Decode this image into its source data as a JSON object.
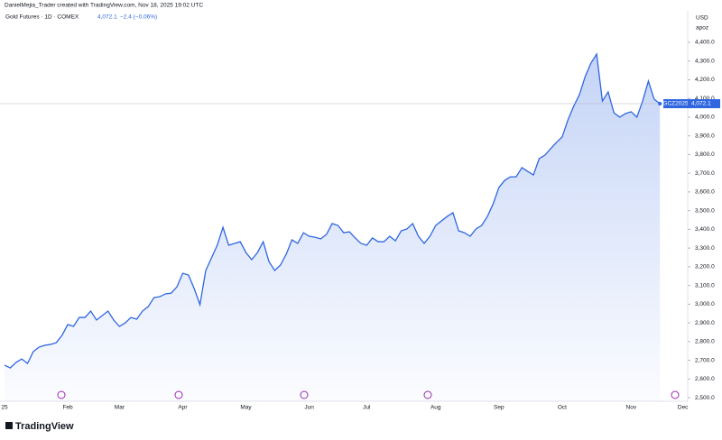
{
  "header": "DanielMejia_Trader created with TradingView.com, Nov 18, 2025 19:02 UTC",
  "footer": "TradingView",
  "chart_data": {
    "type": "area",
    "legend": {
      "symbol": "Gold Futures · 1D · COMEX",
      "last": "4,072.1",
      "change": "−2.4 (−0.06%)"
    },
    "currency": "USD",
    "scale_note": "apoz",
    "price_tag": {
      "ticker": "GCZ2025",
      "label": "4,072.1"
    },
    "categories": [
      "25",
      null,
      null,
      null,
      null,
      null,
      null,
      null,
      null,
      null,
      null,
      "Feb",
      null,
      null,
      null,
      null,
      null,
      null,
      null,
      null,
      "Mar",
      null,
      null,
      null,
      null,
      null,
      null,
      null,
      null,
      null,
      null,
      "Apr",
      null,
      null,
      null,
      null,
      null,
      null,
      null,
      null,
      null,
      null,
      "May",
      null,
      null,
      null,
      null,
      null,
      null,
      null,
      null,
      null,
      null,
      "Jun",
      null,
      null,
      null,
      null,
      null,
      null,
      null,
      null,
      null,
      "Jul",
      null,
      null,
      null,
      null,
      null,
      null,
      null,
      null,
      null,
      null,
      null,
      "Aug",
      null,
      null,
      null,
      null,
      null,
      null,
      null,
      null,
      null,
      null,
      "Sep",
      null,
      null,
      null,
      null,
      null,
      null,
      null,
      null,
      null,
      null,
      "Oct",
      null,
      null,
      null,
      null,
      null,
      null,
      null,
      null,
      null,
      null,
      null,
      "Nov",
      null,
      null,
      null,
      null,
      null,
      null,
      null,
      null,
      "Dec",
      null
    ],
    "series": [
      {
        "name": "Gold Futures",
        "color": "#2f66e0",
        "values": [
          2674,
          2659,
          2688,
          2707,
          2683,
          2746,
          2770,
          2780,
          2785,
          2794,
          2833,
          2891,
          2881,
          2929,
          2929,
          2963,
          2915,
          2939,
          2963,
          2915,
          2881,
          2900,
          2929,
          2920,
          2963,
          2987,
          3035,
          3040,
          3055,
          3059,
          3093,
          3165,
          3156,
          3083,
          2997,
          3180,
          3247,
          3315,
          3411,
          3315,
          3325,
          3334,
          3276,
          3238,
          3276,
          3334,
          3228,
          3180,
          3209,
          3267,
          3344,
          3325,
          3382,
          3363,
          3358,
          3349,
          3373,
          3431,
          3421,
          3382,
          3387,
          3354,
          3325,
          3315,
          3354,
          3334,
          3334,
          3363,
          3339,
          3392,
          3402,
          3431,
          3363,
          3325,
          3363,
          3421,
          3445,
          3469,
          3489,
          3392,
          3382,
          3363,
          3402,
          3421,
          3469,
          3537,
          3624,
          3662,
          3681,
          3681,
          3730,
          3710,
          3691,
          3778,
          3797,
          3831,
          3865,
          3894,
          3985,
          4058,
          4120,
          4217,
          4289,
          4337,
          4086,
          4135,
          4024,
          4000,
          4019,
          4029,
          4000,
          4086,
          4193,
          4096,
          4072.1,
          null,
          null,
          null,
          null,
          null
        ]
      }
    ],
    "ylim": [
      2481,
      4559
    ],
    "yticks": [
      {
        "value": 2500,
        "label": "2,500.0"
      },
      {
        "value": 2600,
        "label": "2,600.0"
      },
      {
        "value": 2700,
        "label": "2,700.0"
      },
      {
        "value": 2800,
        "label": "2,800.0"
      },
      {
        "value": 2900,
        "label": "2,900.0"
      },
      {
        "value": 3000,
        "label": "3,000.0"
      },
      {
        "value": 3100,
        "label": "3,100.0"
      },
      {
        "value": 3200,
        "label": "3,200.0"
      },
      {
        "value": 3300,
        "label": "3,300.0"
      },
      {
        "value": 3400,
        "label": "3,400.0"
      },
      {
        "value": 3500,
        "label": "3,500.0"
      },
      {
        "value": 3600,
        "label": "3,600.0"
      },
      {
        "value": 3700,
        "label": "3,700.0"
      },
      {
        "value": 3800,
        "label": "3,800.0"
      },
      {
        "value": 3900,
        "label": "3,900.0"
      },
      {
        "value": 4000,
        "label": "4,000.0"
      },
      {
        "value": 4100,
        "label": "4,100.0"
      },
      {
        "value": 4200,
        "label": "4,200.0"
      },
      {
        "value": 4300,
        "label": "4,300.0"
      },
      {
        "value": 4400,
        "label": "4,400.0"
      }
    ],
    "grid": false
  }
}
